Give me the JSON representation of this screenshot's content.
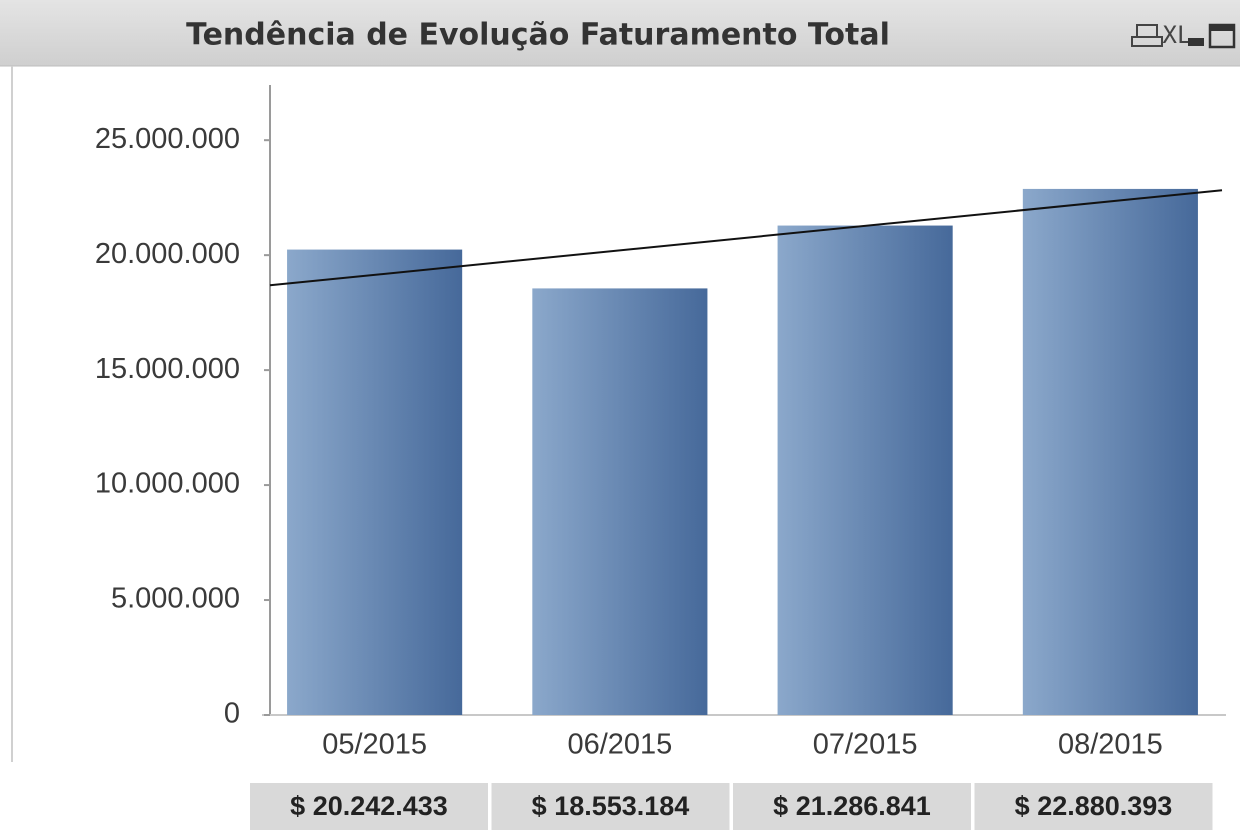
{
  "header": {
    "title": "Tendência de Evolução Faturamento Total",
    "tools": [
      "XL"
    ]
  },
  "chart_data": {
    "type": "bar",
    "categories": [
      "05/2015",
      "06/2015",
      "07/2015",
      "08/2015"
    ],
    "values": [
      20242433,
      18553184,
      21286841,
      22880393
    ],
    "value_labels": [
      "$ 20.242.433",
      "$ 18.553.184",
      "$ 21.286.841",
      "$ 22.880.393"
    ],
    "color": [
      "#8ba8cb",
      "#46699a"
    ],
    "ylim": [
      0,
      27400000
    ],
    "yticks": [
      0,
      {
        "value": 5000000,
        "label": "5.000.000"
      },
      {
        "value": 10000000,
        "label": "10.000.000"
      },
      {
        "value": 15000000,
        "label": "15.000.000"
      },
      {
        "value": 20000000,
        "label": "20.000.000"
      },
      {
        "value": 25000000,
        "label": "25.000.000"
      }
    ],
    "grid": false,
    "trendline": true
  }
}
